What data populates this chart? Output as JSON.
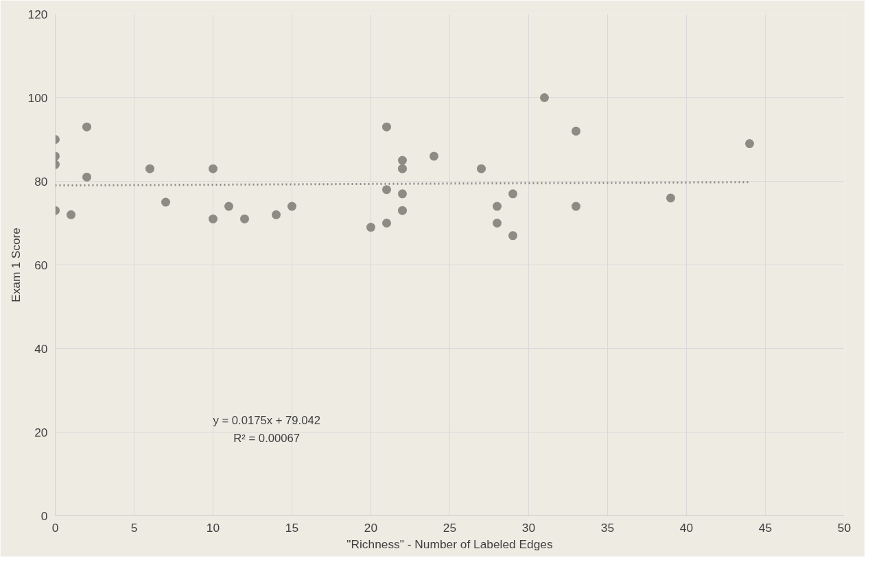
{
  "chart_data": {
    "type": "scatter",
    "xlabel": "\"Richness\" - Number of Labeled Edges",
    "ylabel": "Exam 1 Score",
    "xlim": [
      0,
      50
    ],
    "ylim": [
      0,
      120
    ],
    "xticks": [
      0,
      5,
      10,
      15,
      20,
      25,
      30,
      35,
      40,
      45,
      50
    ],
    "yticks": [
      0,
      20,
      40,
      60,
      80,
      100,
      120
    ],
    "grid": true,
    "annotations": [
      "y = 0.0175x + 79.042",
      "R² = 0.00067"
    ],
    "series": [
      {
        "marker": "circle",
        "color": "#8c8c84",
        "x": [
          0,
          0,
          0,
          0,
          1,
          2,
          2,
          6,
          7,
          10,
          10,
          11,
          12,
          14,
          15,
          20,
          21,
          21,
          21,
          22,
          22,
          22,
          22,
          24,
          27,
          28,
          28,
          29,
          29,
          31,
          33,
          33,
          39,
          44
        ],
        "values": [
          90,
          86,
          84,
          73,
          72,
          93,
          81,
          83,
          75,
          83,
          71,
          74,
          71,
          72,
          74,
          69,
          93,
          78,
          70,
          85,
          83,
          77,
          73,
          86,
          83,
          74,
          70,
          77,
          67,
          100,
          92,
          74,
          76,
          89
        ]
      },
      {
        "type": "line",
        "line_style": "dotted",
        "color": "#8c8c84",
        "x": [
          0,
          44
        ],
        "values": [
          79.0,
          79.8
        ]
      }
    ]
  }
}
